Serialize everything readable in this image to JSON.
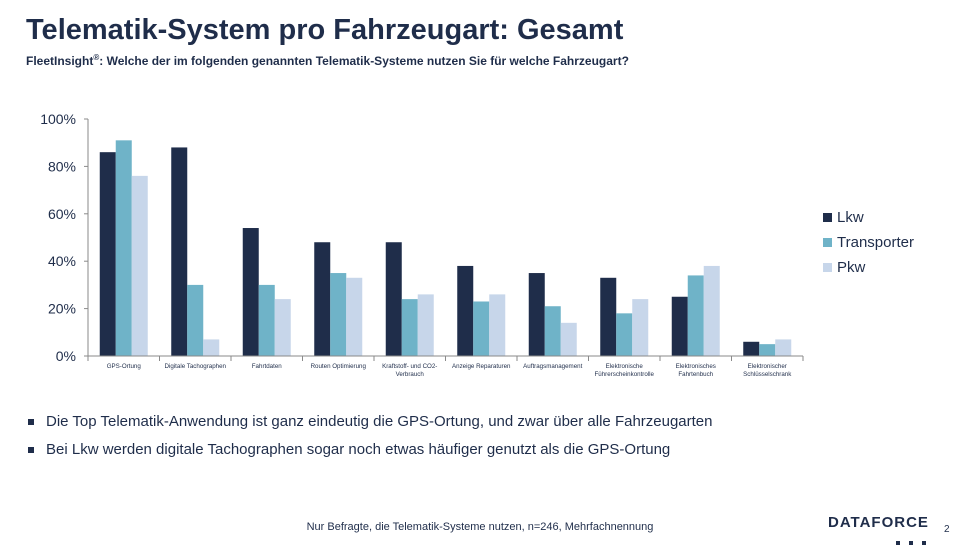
{
  "header": {
    "title": "Telematik-System pro Fahrzeugart: Gesamt",
    "subtitle_brand": "FleetInsight",
    "subtitle_mark": "®",
    "subtitle_text": ": Welche der im folgenden genannten Telematik-Systeme nutzen Sie für welche Fahrzeugart?"
  },
  "chart_data": {
    "type": "bar",
    "categories": [
      "GPS-Ortung",
      "Digitale Tachographen",
      "Fahrtdaten",
      "Routen Optimierung",
      "Kraftstoff- und CO2-Verbrauch",
      "Anzeige Reparaturen",
      "Auftragsmanagement",
      "Elektronische Führerscheinkontrolle",
      "Elektronisches Fahrtenbuch",
      "Elektronischer Schlüsselschrank"
    ],
    "category_lines": [
      [
        "GPS-Ortung"
      ],
      [
        "Digitale Tachographen"
      ],
      [
        "Fahrtdaten"
      ],
      [
        "Routen Optimierung"
      ],
      [
        "Kraftstoff- und CO2-",
        "Verbrauch"
      ],
      [
        "Anzeige Reparaturen"
      ],
      [
        "Auftragsmanagement"
      ],
      [
        "Elektronische",
        "Führerscheinkontrolle"
      ],
      [
        "Elektronisches",
        "Fahrtenbuch"
      ],
      [
        "Elektronischer",
        "Schlüsselschrank"
      ]
    ],
    "series": [
      {
        "name": "Lkw",
        "color": "#1f2d4a",
        "values": [
          86,
          88,
          54,
          48,
          48,
          38,
          35,
          33,
          25,
          6
        ]
      },
      {
        "name": "Transporter",
        "color": "#6fb3c8",
        "values": [
          91,
          30,
          30,
          35,
          24,
          23,
          21,
          18,
          34,
          5
        ]
      },
      {
        "name": "Pkw",
        "color": "#c7d6ea",
        "values": [
          76,
          7,
          24,
          33,
          26,
          26,
          14,
          24,
          38,
          7
        ]
      }
    ],
    "ylim": [
      0,
      100
    ],
    "yticks": [
      "0%",
      "20%",
      "40%",
      "60%",
      "80%",
      "100%"
    ],
    "legend_position": "right",
    "grid": false
  },
  "bullets": [
    "Die Top Telematik-Anwendung  ist ganz eindeutig die GPS-Ortung,  und zwar über alle Fahrzeugarten",
    "Bei Lkw werden digitale Tachographen sogar noch etwas häufiger genutzt  als die GPS-Ortung"
  ],
  "footnote": "Nur Befragte, die Telematik-Systeme  nutzen, n=246, Mehrfachnennung",
  "logo": "DATAFORCE",
  "page_number": "2"
}
